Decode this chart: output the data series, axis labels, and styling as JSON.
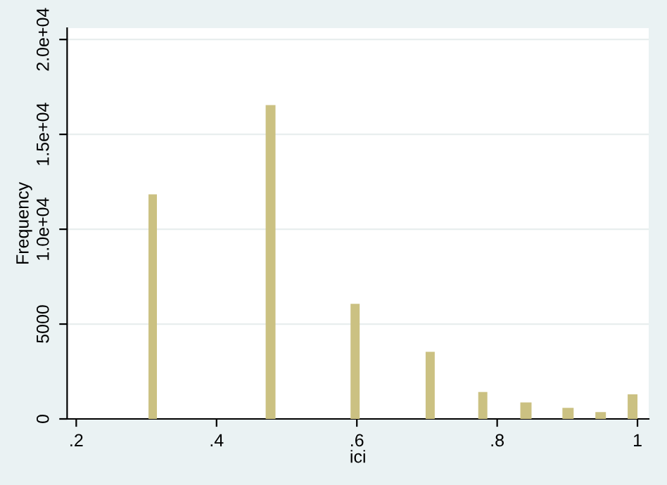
{
  "chart_data": {
    "type": "histogram",
    "xlabel": "ici",
    "ylabel": "Frequency",
    "color": "#cbc182",
    "bins": [
      0.303,
      0.315,
      0.47,
      0.484,
      0.591,
      0.604,
      0.698,
      0.711,
      0.773,
      0.786,
      0.833,
      0.849,
      0.893,
      0.909,
      0.94,
      0.955,
      0.986,
      1.0
    ],
    "values": [
      11840,
      0,
      16540,
      0,
      6070,
      0,
      3540,
      0,
      1420,
      0,
      870,
      0,
      580,
      0,
      360,
      0,
      1300
    ],
    "xlim": [
      0.187,
      1.016
    ],
    "ylim": [
      0,
      20600
    ],
    "xticks": [
      {
        "value": 0.2,
        "label": ".2"
      },
      {
        "value": 0.4,
        "label": ".4"
      },
      {
        "value": 0.6,
        "label": ".6"
      },
      {
        "value": 0.8,
        "label": ".8"
      },
      1
    ],
    "yticks": [
      0,
      5000,
      {
        "value": 10000,
        "label": "1.0e+04"
      },
      {
        "value": 15000,
        "label": "1.5e+04"
      },
      {
        "value": 20000,
        "label": "2.0e+04"
      }
    ],
    "grid": "y"
  }
}
